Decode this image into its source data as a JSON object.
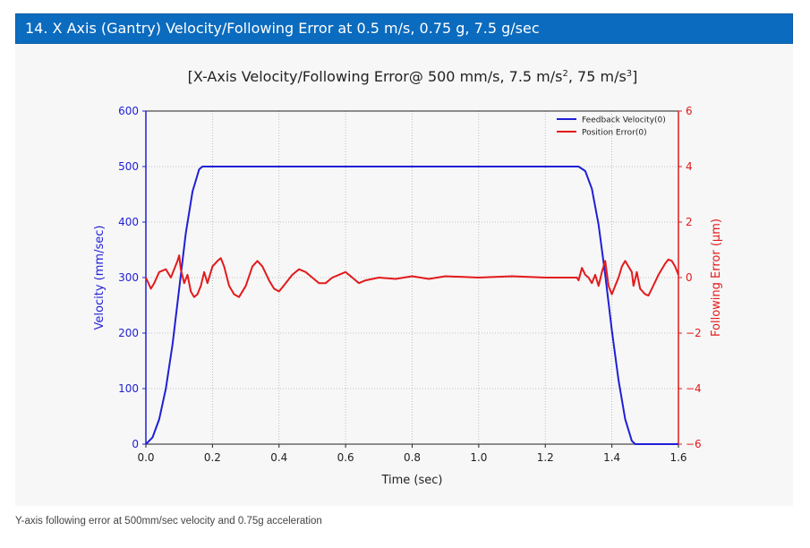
{
  "header": {
    "title": "14. X Axis (Gantry) Velocity/Following Error at 0.5 m/s, 0.75 g, 7.5 g/sec"
  },
  "caption": "Y-axis following error at 500mm/sec velocity and 0.75g acceleration",
  "colors": {
    "header_bg": "#0b6bbf",
    "velocity": "#1f1fd6",
    "error": "#e31a1c",
    "grid": "#b0b0b0"
  },
  "chart_data": {
    "type": "line",
    "title_parts": {
      "prefix": "[X-Axis Velocity/Following Error@ 500 mm/s, 7.5 m/s",
      "sup1": "2",
      "mid": ", 75 m/s",
      "sup2": "3",
      "suffix": "]"
    },
    "xlabel": "Time (sec)",
    "ylabel": "Velocity (mm/sec)",
    "y2label": "Following Error (µm)",
    "xlim": [
      0,
      1.6
    ],
    "ylim": [
      0,
      600
    ],
    "y2lim": [
      -6,
      6
    ],
    "xticks": [
      "0.0",
      "0.2",
      "0.4",
      "0.6",
      "0.8",
      "1.0",
      "1.2",
      "1.4",
      "1.6"
    ],
    "yticks": [
      "0",
      "100",
      "200",
      "300",
      "400",
      "500",
      "600"
    ],
    "y2ticks": [
      "−6",
      "−4",
      "−2",
      "0",
      "2",
      "4",
      "6"
    ],
    "grid": true,
    "legend_position": "top-right",
    "series": [
      {
        "name": "Feedback Velocity(0)",
        "axis": "left",
        "color": "#1f1fd6",
        "points": [
          [
            0,
            0
          ],
          [
            0.02,
            12
          ],
          [
            0.04,
            45
          ],
          [
            0.06,
            100
          ],
          [
            0.08,
            180
          ],
          [
            0.1,
            280
          ],
          [
            0.12,
            380
          ],
          [
            0.14,
            455
          ],
          [
            0.16,
            495
          ],
          [
            0.17,
            500
          ],
          [
            1.3,
            500
          ],
          [
            1.32,
            492
          ],
          [
            1.34,
            460
          ],
          [
            1.36,
            395
          ],
          [
            1.38,
            305
          ],
          [
            1.4,
            205
          ],
          [
            1.42,
            115
          ],
          [
            1.44,
            45
          ],
          [
            1.46,
            6
          ],
          [
            1.47,
            0
          ],
          [
            1.6,
            0
          ]
        ]
      },
      {
        "name": "Position Error(0)",
        "axis": "right",
        "color": "#e31a1c",
        "points": [
          [
            0,
            0
          ],
          [
            0.015,
            -0.4
          ],
          [
            0.025,
            -0.2
          ],
          [
            0.04,
            0.2
          ],
          [
            0.06,
            0.3
          ],
          [
            0.075,
            0
          ],
          [
            0.085,
            0.3
          ],
          [
            0.095,
            0.6
          ],
          [
            0.1,
            0.8
          ],
          [
            0.105,
            0.3
          ],
          [
            0.115,
            -0.2
          ],
          [
            0.125,
            0.1
          ],
          [
            0.135,
            -0.5
          ],
          [
            0.145,
            -0.7
          ],
          [
            0.155,
            -0.6
          ],
          [
            0.165,
            -0.3
          ],
          [
            0.175,
            0.2
          ],
          [
            0.185,
            -0.2
          ],
          [
            0.2,
            0.4
          ],
          [
            0.215,
            0.6
          ],
          [
            0.225,
            0.7
          ],
          [
            0.235,
            0.4
          ],
          [
            0.25,
            -0.3
          ],
          [
            0.265,
            -0.6
          ],
          [
            0.28,
            -0.7
          ],
          [
            0.3,
            -0.3
          ],
          [
            0.32,
            0.4
          ],
          [
            0.335,
            0.6
          ],
          [
            0.35,
            0.4
          ],
          [
            0.37,
            -0.1
          ],
          [
            0.385,
            -0.4
          ],
          [
            0.4,
            -0.5
          ],
          [
            0.42,
            -0.2
          ],
          [
            0.44,
            0.1
          ],
          [
            0.46,
            0.3
          ],
          [
            0.48,
            0.2
          ],
          [
            0.5,
            0
          ],
          [
            0.52,
            -0.2
          ],
          [
            0.54,
            -0.2
          ],
          [
            0.56,
            0
          ],
          [
            0.58,
            0.1
          ],
          [
            0.6,
            0.2
          ],
          [
            0.62,
            0
          ],
          [
            0.64,
            -0.2
          ],
          [
            0.66,
            -0.1
          ],
          [
            0.7,
            0
          ],
          [
            0.75,
            -0.05
          ],
          [
            0.8,
            0.05
          ],
          [
            0.85,
            -0.05
          ],
          [
            0.9,
            0.05
          ],
          [
            1.0,
            0
          ],
          [
            1.1,
            0.05
          ],
          [
            1.2,
            0
          ],
          [
            1.28,
            0
          ],
          [
            1.295,
            0
          ],
          [
            1.3,
            -0.1
          ],
          [
            1.31,
            0.35
          ],
          [
            1.32,
            0.1
          ],
          [
            1.33,
            0
          ],
          [
            1.34,
            -0.2
          ],
          [
            1.35,
            0.1
          ],
          [
            1.36,
            -0.3
          ],
          [
            1.37,
            0.2
          ],
          [
            1.38,
            0.6
          ],
          [
            1.39,
            -0.3
          ],
          [
            1.4,
            -0.6
          ],
          [
            1.41,
            -0.3
          ],
          [
            1.42,
            0
          ],
          [
            1.43,
            0.4
          ],
          [
            1.44,
            0.6
          ],
          [
            1.45,
            0.4
          ],
          [
            1.46,
            0.2
          ],
          [
            1.465,
            -0.3
          ],
          [
            1.475,
            0.2
          ],
          [
            1.485,
            -0.4
          ],
          [
            1.5,
            -0.6
          ],
          [
            1.51,
            -0.65
          ],
          [
            1.52,
            -0.4
          ],
          [
            1.54,
            0.1
          ],
          [
            1.56,
            0.5
          ],
          [
            1.57,
            0.65
          ],
          [
            1.58,
            0.6
          ],
          [
            1.59,
            0.4
          ],
          [
            1.6,
            0.1
          ]
        ]
      }
    ]
  }
}
